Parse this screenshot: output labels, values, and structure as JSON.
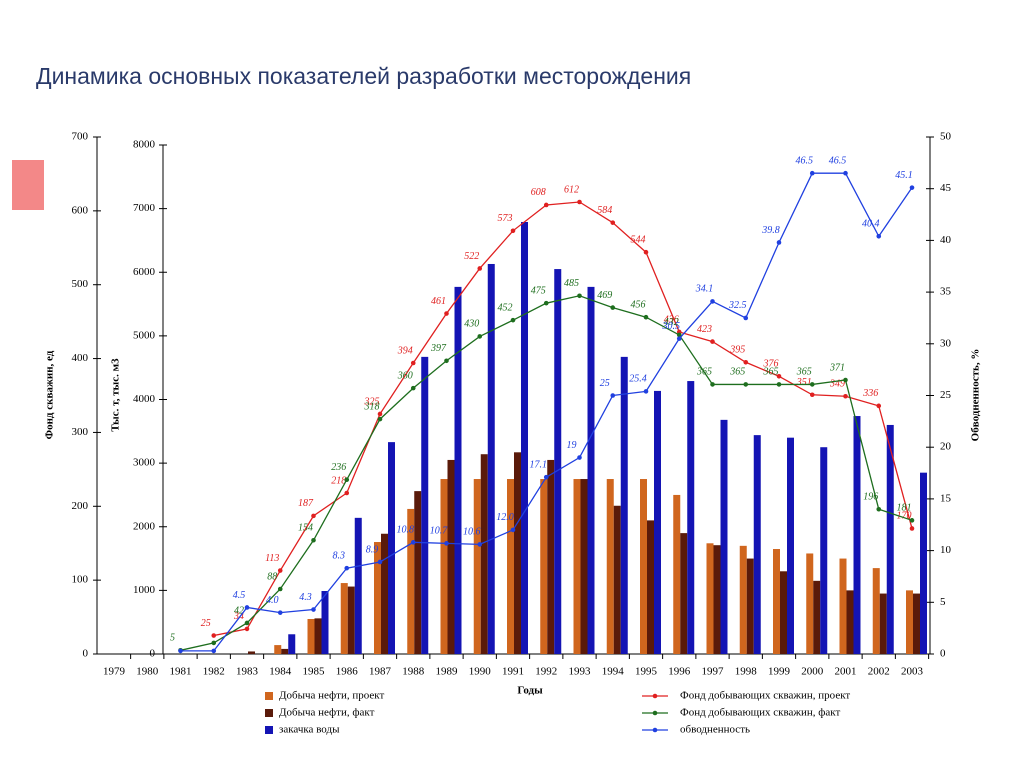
{
  "chart_data": {
    "type": "combo",
    "title": "Динамика основных показателей разработки месторождения",
    "xlabel": "Годы",
    "ylabel": "Фонд скважин, ед",
    "y2label": "Тыс. т, тыс. м3",
    "y3label": "Обводненность, %",
    "categories": [
      "1979",
      "1980",
      "1981",
      "1982",
      "1983",
      "1984",
      "1985",
      "1986",
      "1987",
      "1988",
      "1989",
      "1990",
      "1991",
      "1992",
      "1993",
      "1994",
      "1995",
      "1996",
      "1997",
      "1998",
      "1999",
      "2000",
      "2001",
      "2002",
      "2003"
    ],
    "ylim": [
      0,
      700
    ],
    "yticks": [
      0,
      100,
      200,
      300,
      400,
      500,
      600,
      700
    ],
    "y2lim": [
      0,
      8000
    ],
    "y2ticks": [
      0,
      1000,
      2000,
      3000,
      4000,
      5000,
      6000,
      7000,
      8000
    ],
    "y3lim": [
      0,
      50
    ],
    "y3ticks": [
      0,
      5,
      10,
      15,
      20,
      25,
      30,
      35,
      40,
      45,
      50
    ],
    "series": [
      {
        "name": "Добыча нефти, проект",
        "type": "bar",
        "axis": "y2",
        "color": "#d0661e",
        "values": [
          null,
          null,
          null,
          null,
          null,
          140,
          550,
          1115,
          1760,
          2280,
          2750,
          2750,
          2750,
          2750,
          2750,
          2750,
          2750,
          2500,
          1740,
          1700,
          1650,
          1580,
          1500,
          1350,
          1000
        ]
      },
      {
        "name": "Добыча нефти, факт",
        "type": "bar",
        "axis": "y2",
        "color": "#5a1a0a",
        "values": [
          null,
          null,
          null,
          null,
          40,
          80,
          560,
          1060,
          1890,
          2560,
          3050,
          3140,
          3170,
          3050,
          2750,
          2330,
          2100,
          1900,
          1710,
          1500,
          1300,
          1150,
          1000,
          950,
          950
        ]
      },
      {
        "name": "закачка воды",
        "type": "bar",
        "axis": "y2",
        "color": "#1414b4",
        "values": [
          null,
          null,
          null,
          null,
          null,
          310,
          990,
          2140,
          3330,
          4670,
          5770,
          6130,
          6790,
          6050,
          5770,
          4670,
          4135,
          4290,
          3680,
          3440,
          3400,
          3250,
          3740,
          3600,
          2850
        ]
      },
      {
        "name": "Фонд добывающих скважин, проект",
        "type": "line",
        "axis": "y",
        "color": "#e02020",
        "values": [
          null,
          null,
          null,
          25,
          34,
          113,
          187,
          218,
          325,
          394,
          461,
          522,
          573,
          608,
          612,
          584,
          544,
          436,
          423,
          395,
          376,
          351,
          349,
          336,
          170
        ]
      },
      {
        "name": "Фонд добывающих скважин, факт",
        "type": "line",
        "axis": "y",
        "color": "#1e6e1e",
        "values": [
          null,
          null,
          5,
          15,
          42,
          88,
          154,
          236,
          318,
          360,
          397,
          430,
          452,
          475,
          485,
          469,
          456,
          432,
          365,
          365,
          365,
          365,
          371,
          196,
          181
        ],
        "value_labels": [
          null,
          null,
          "5",
          null,
          "42",
          "88",
          "154",
          "236",
          "318",
          "360",
          "397",
          "430",
          "452",
          "475",
          "485",
          "469",
          "456",
          "432",
          "365",
          "365",
          "365",
          "365",
          "371",
          "196",
          "181"
        ]
      },
      {
        "name": "обводненность",
        "type": "line",
        "axis": "y3",
        "color": "#2040e0",
        "values": [
          null,
          null,
          0.3,
          0.3,
          4.5,
          4.0,
          4.3,
          8.3,
          8.9,
          10.8,
          10.7,
          10.6,
          12.0,
          17.1,
          19,
          25,
          25.4,
          30.5,
          34.1,
          32.5,
          39.8,
          46.5,
          46.5,
          40.4,
          45.1
        ],
        "value_labels": [
          null,
          null,
          null,
          null,
          "4.5",
          "4.0",
          "4.3",
          "8.3",
          "8.9",
          "10.8",
          "10.7",
          "10.6",
          "12.0",
          "17.1",
          "19",
          "25",
          "25.4",
          "30.5",
          "34.1",
          "32.5",
          "39.8",
          "46.5",
          "46.5",
          "40.4",
          "45.1"
        ]
      }
    ]
  }
}
